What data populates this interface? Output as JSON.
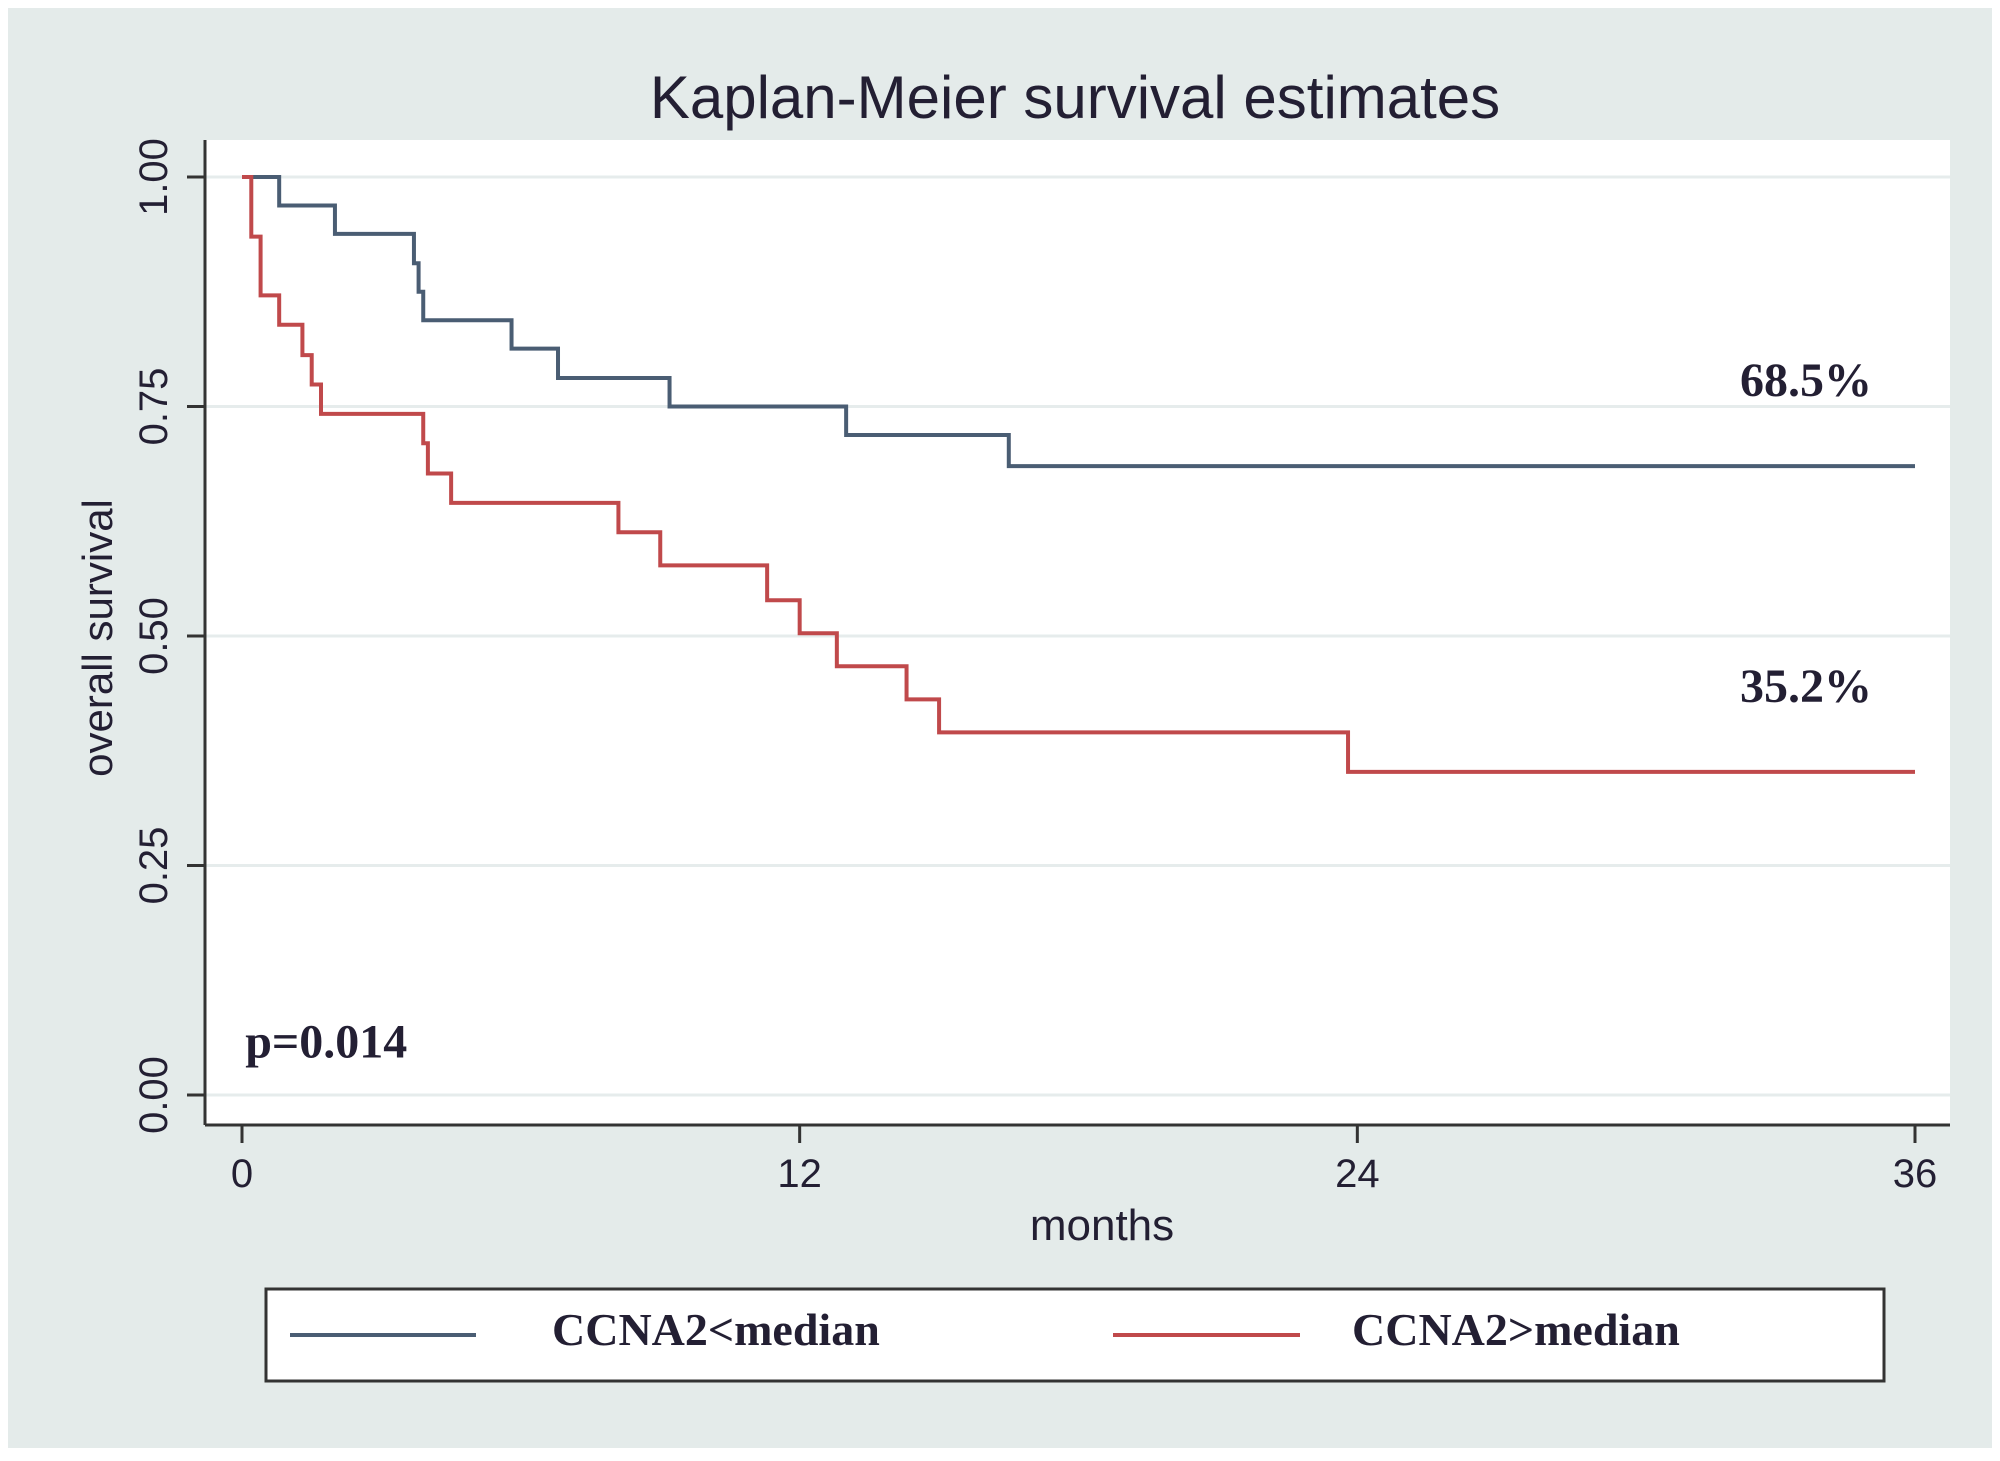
{
  "colors": {
    "outer_background": "#e4ebea",
    "plot_background": "#ffffff",
    "gridline": "#e6ecec",
    "axis": "#333333",
    "text": "#231f33",
    "series_low": "#4a5d73",
    "series_high": "#c0494b"
  },
  "chart_data": {
    "type": "line",
    "step": true,
    "title": "Kaplan-Meier survival estimates",
    "xlabel": "months",
    "ylabel": "overall survival",
    "xlim": [
      0,
      36
    ],
    "ylim": [
      0,
      1
    ],
    "xticks": [
      0,
      12,
      24,
      36
    ],
    "xtick_labels": [
      "0",
      "12",
      "24",
      "36"
    ],
    "yticks": [
      0,
      0.25,
      0.5,
      0.75,
      1
    ],
    "ytick_labels": [
      "0.00",
      "0.25",
      "0.50",
      "0.75",
      "1.00"
    ],
    "grid": true,
    "legend": "bottom",
    "series": [
      {
        "name": "CCNA2<median",
        "color": "#4a5d73",
        "x": [
          0,
          0.8,
          2.0,
          3.7,
          3.8,
          3.9,
          4.0,
          5.8,
          6.8,
          9.2,
          13.0,
          16.5,
          36.0
        ],
        "y": [
          1.0,
          0.969,
          0.938,
          0.906,
          0.875,
          0.844,
          0.844,
          0.813,
          0.781,
          0.75,
          0.719,
          0.685,
          0.685
        ],
        "end_label": "68.5%"
      },
      {
        "name": "CCNA2>median",
        "color": "#c0494b",
        "x": [
          0,
          0.2,
          0.4,
          0.8,
          1.3,
          1.5,
          1.7,
          3.9,
          4.0,
          4.5,
          8.1,
          9.0,
          11.3,
          12.0,
          12.8,
          14.3,
          15.0,
          23.8,
          36.0
        ],
        "y": [
          1.0,
          0.935,
          0.871,
          0.839,
          0.806,
          0.774,
          0.742,
          0.71,
          0.677,
          0.645,
          0.613,
          0.577,
          0.539,
          0.503,
          0.467,
          0.431,
          0.395,
          0.352,
          0.352
        ],
        "end_label": "35.2%"
      }
    ],
    "annotations": [
      {
        "text": "p=0.014",
        "x": 0.5,
        "y": 0.03
      }
    ]
  }
}
